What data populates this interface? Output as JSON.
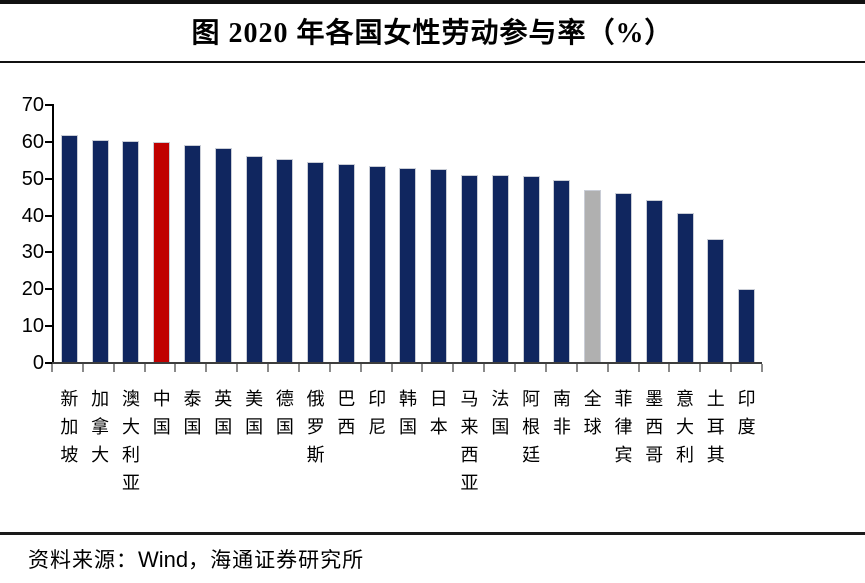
{
  "figure": {
    "title": "图 2020 年各国女性劳动参与率（%）",
    "source_prefix": "资料来源：",
    "source_wind": "Wind",
    "source_suffix": "，海通证券研究所"
  },
  "colors": {
    "bar_default": "#10265f",
    "bar_china_highlight": "#c00000",
    "bar_global_highlight": "#b0b0b0",
    "axis": "#000000",
    "baseline": "#3d3d3d",
    "x_tick": "#8a8a8a"
  },
  "chart_data": {
    "type": "bar",
    "title": "图 2020 年各国女性劳动参与率（%）",
    "categories": [
      "新加坡",
      "加拿大",
      "澳大利亚",
      "中国",
      "泰国",
      "英国",
      "美国",
      "德国",
      "俄罗斯",
      "巴西",
      "印尼",
      "韩国",
      "日本",
      "马来西亚",
      "法国",
      "阿根廷",
      "南非",
      "全球",
      "菲律宾",
      "墨西哥",
      "意大利",
      "土耳其",
      "印度"
    ],
    "values": [
      61.7,
      60.6,
      60.2,
      59.8,
      59.2,
      58.2,
      56.0,
      55.4,
      54.5,
      54.0,
      53.3,
      52.9,
      52.6,
      51.0,
      50.9,
      50.7,
      49.7,
      46.9,
      46.1,
      44.2,
      40.5,
      33.6,
      20.0
    ],
    "bar_colors": [
      "#10265f",
      "#10265f",
      "#10265f",
      "#c00000",
      "#10265f",
      "#10265f",
      "#10265f",
      "#10265f",
      "#10265f",
      "#10265f",
      "#10265f",
      "#10265f",
      "#10265f",
      "#10265f",
      "#10265f",
      "#10265f",
      "#10265f",
      "#b0b0b0",
      "#10265f",
      "#10265f",
      "#10265f",
      "#10265f",
      "#10265f"
    ],
    "highlighted": {
      "中国": "#c00000",
      "全球": "#b0b0b0"
    },
    "xlabel": "",
    "ylabel": "",
    "ylim": [
      0,
      70
    ],
    "yticks": [
      0,
      10,
      20,
      30,
      40,
      50,
      60,
      70
    ],
    "grid": false,
    "legend": "none"
  }
}
